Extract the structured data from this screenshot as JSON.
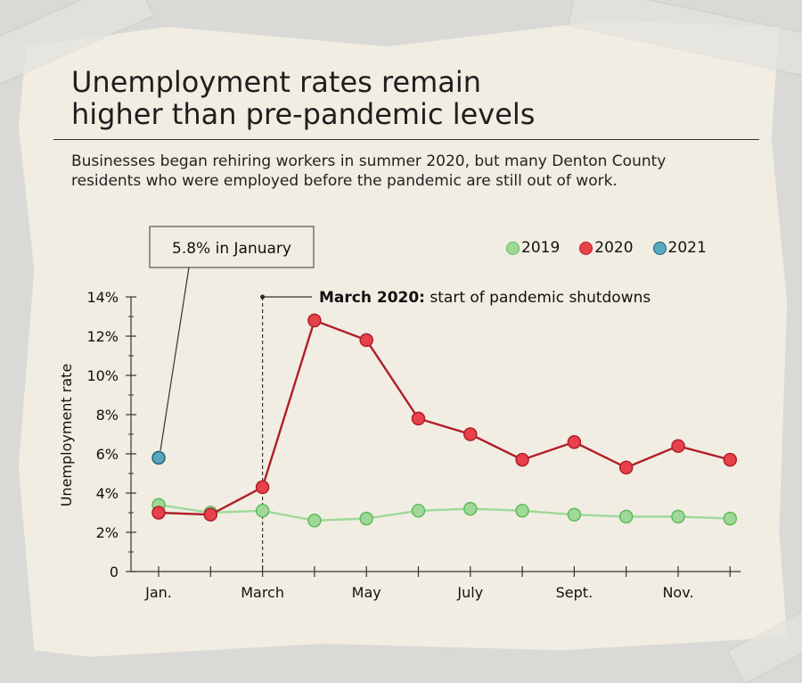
{
  "heading": {
    "title_line1": "Unemployment rates remain",
    "title_line2": "higher than pre-pandemic levels",
    "subtitle_line1": "Businesses began rehiring workers in summer 2020, but many Denton County",
    "subtitle_line2": "residents who were employed before the pandemic are still out of work."
  },
  "colors": {
    "s2019_fill": "#9fd89a",
    "s2019_stroke": "#5dbb5a",
    "s2020_fill": "#e8414c",
    "s2020_stroke": "#b01e28",
    "s2021_fill": "#56a8bd",
    "s2021_stroke": "#22607a"
  },
  "chart_data": {
    "type": "line",
    "ylabel": "Unemployment rate",
    "ylim": [
      0,
      14
    ],
    "yticks": [
      0,
      2,
      4,
      6,
      8,
      10,
      12,
      14
    ],
    "ytick_labels": [
      "0",
      "2%",
      "4%",
      "6%",
      "8%",
      "10%",
      "12%",
      "14%"
    ],
    "x_months": [
      1,
      2,
      3,
      4,
      5,
      6,
      7,
      8,
      9,
      10,
      11,
      12
    ],
    "xtick_labels": [
      {
        "month": 1,
        "label": "Jan."
      },
      {
        "month": 3,
        "label": "March"
      },
      {
        "month": 5,
        "label": "May"
      },
      {
        "month": 7,
        "label": "July"
      },
      {
        "month": 9,
        "label": "Sept."
      },
      {
        "month": 11,
        "label": "Nov."
      }
    ],
    "legend": [
      "2019",
      "2020",
      "2021"
    ],
    "legend_position": "top-right",
    "series": [
      {
        "name": "2019",
        "months": [
          1,
          2,
          3,
          4,
          5,
          6,
          7,
          8,
          9,
          10,
          11,
          12
        ],
        "values": [
          3.4,
          3.0,
          3.1,
          2.6,
          2.7,
          3.1,
          3.2,
          3.1,
          2.9,
          2.8,
          2.8,
          2.7
        ]
      },
      {
        "name": "2020",
        "months": [
          1,
          2,
          3,
          4,
          5,
          6,
          7,
          8,
          9,
          10,
          11,
          12
        ],
        "values": [
          3.0,
          2.9,
          4.3,
          12.8,
          11.8,
          7.8,
          7.0,
          5.7,
          6.6,
          5.3,
          6.4,
          5.7
        ]
      },
      {
        "name": "2021",
        "months": [
          1
        ],
        "values": [
          5.8
        ]
      }
    ],
    "annotations": [
      {
        "id": "jan2021",
        "text": "5.8% in January",
        "month": 1,
        "value": 5.8
      },
      {
        "id": "march2020",
        "bold": "March 2020:",
        "text": " start of pandemic shutdowns",
        "month": 3
      }
    ]
  }
}
